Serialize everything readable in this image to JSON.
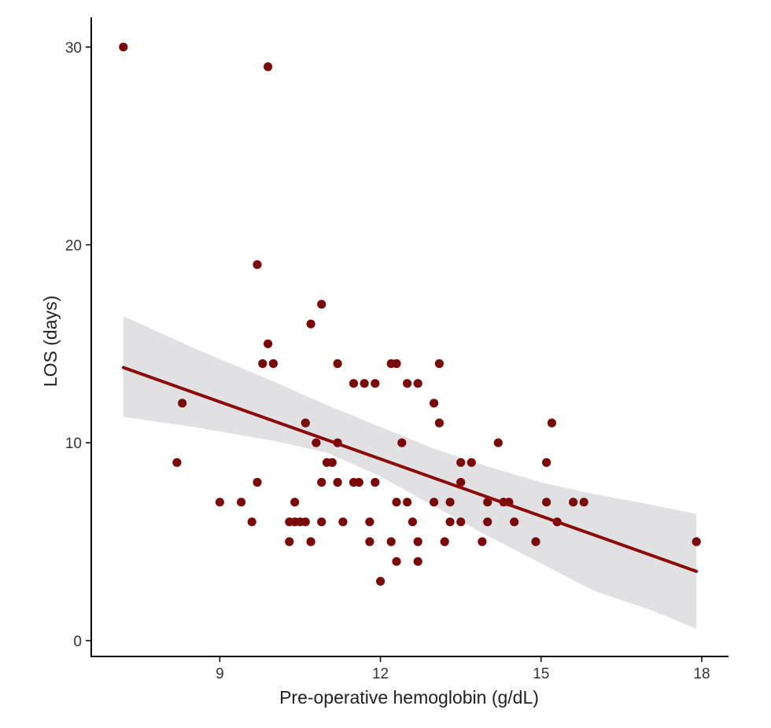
{
  "chart_data": {
    "type": "scatter",
    "xlabel": "Pre-operative hemoglobin (g/dL)",
    "ylabel": "LOS (days)",
    "xlim": [
      6.6,
      18.5
    ],
    "ylim": [
      -0.8,
      31.5
    ],
    "xticks": [
      9,
      12,
      15,
      18
    ],
    "yticks": [
      0,
      10,
      20,
      30
    ],
    "grid": false,
    "legend": "none",
    "point_color": "#7a0a0a",
    "line_color": "#8b0a0a",
    "band_color": "#dcdcde",
    "points": [
      [
        7.2,
        30
      ],
      [
        9.9,
        29
      ],
      [
        9.7,
        19
      ],
      [
        10.9,
        17
      ],
      [
        10.7,
        16
      ],
      [
        9.9,
        15
      ],
      [
        9.8,
        14
      ],
      [
        10.0,
        14
      ],
      [
        11.2,
        14
      ],
      [
        12.2,
        14
      ],
      [
        12.3,
        14
      ],
      [
        13.1,
        14
      ],
      [
        11.5,
        13
      ],
      [
        11.7,
        13
      ],
      [
        11.9,
        13
      ],
      [
        12.5,
        13
      ],
      [
        12.7,
        13
      ],
      [
        8.3,
        12
      ],
      [
        13.0,
        12
      ],
      [
        10.6,
        11
      ],
      [
        13.1,
        11
      ],
      [
        15.2,
        11
      ],
      [
        8.2,
        9
      ],
      [
        10.8,
        10
      ],
      [
        11.2,
        10
      ],
      [
        12.4,
        10
      ],
      [
        14.2,
        10
      ],
      [
        11.0,
        9
      ],
      [
        11.1,
        9
      ],
      [
        13.5,
        9
      ],
      [
        13.7,
        9
      ],
      [
        15.1,
        9
      ],
      [
        9.7,
        8
      ],
      [
        10.9,
        8
      ],
      [
        11.2,
        8
      ],
      [
        11.5,
        8
      ],
      [
        11.6,
        8
      ],
      [
        11.9,
        8
      ],
      [
        13.5,
        8
      ],
      [
        9.0,
        7
      ],
      [
        9.4,
        7
      ],
      [
        10.4,
        7
      ],
      [
        12.3,
        7
      ],
      [
        12.5,
        7
      ],
      [
        13.0,
        7
      ],
      [
        13.3,
        7
      ],
      [
        14.0,
        7
      ],
      [
        14.3,
        7
      ],
      [
        14.4,
        7
      ],
      [
        15.1,
        7
      ],
      [
        15.6,
        7
      ],
      [
        15.8,
        7
      ],
      [
        9.6,
        6
      ],
      [
        10.3,
        6
      ],
      [
        10.4,
        6
      ],
      [
        10.5,
        6
      ],
      [
        10.6,
        6
      ],
      [
        10.9,
        6
      ],
      [
        11.3,
        6
      ],
      [
        11.8,
        6
      ],
      [
        12.6,
        6
      ],
      [
        13.3,
        6
      ],
      [
        13.5,
        6
      ],
      [
        14.0,
        6
      ],
      [
        14.5,
        6
      ],
      [
        15.3,
        6
      ],
      [
        10.3,
        5
      ],
      [
        10.7,
        5
      ],
      [
        11.8,
        5
      ],
      [
        12.2,
        5
      ],
      [
        12.7,
        5
      ],
      [
        13.2,
        5
      ],
      [
        13.9,
        5
      ],
      [
        14.9,
        5
      ],
      [
        17.9,
        5
      ],
      [
        12.3,
        4
      ],
      [
        12.7,
        4
      ],
      [
        12.0,
        3
      ]
    ],
    "fit": {
      "x": [
        7.2,
        17.9
      ],
      "y": [
        13.8,
        3.5
      ]
    },
    "ci_band": {
      "x": [
        7.2,
        8.5,
        10,
        11,
        12,
        13,
        14,
        15,
        16,
        17,
        17.9
      ],
      "upper": [
        16.4,
        14.8,
        13.1,
        11.9,
        10.8,
        9.7,
        8.8,
        8.0,
        7.4,
        6.9,
        6.4
      ],
      "lower": [
        11.3,
        10.8,
        10.1,
        9.5,
        8.3,
        6.8,
        5.3,
        3.9,
        2.5,
        1.6,
        0.6
      ]
    }
  }
}
